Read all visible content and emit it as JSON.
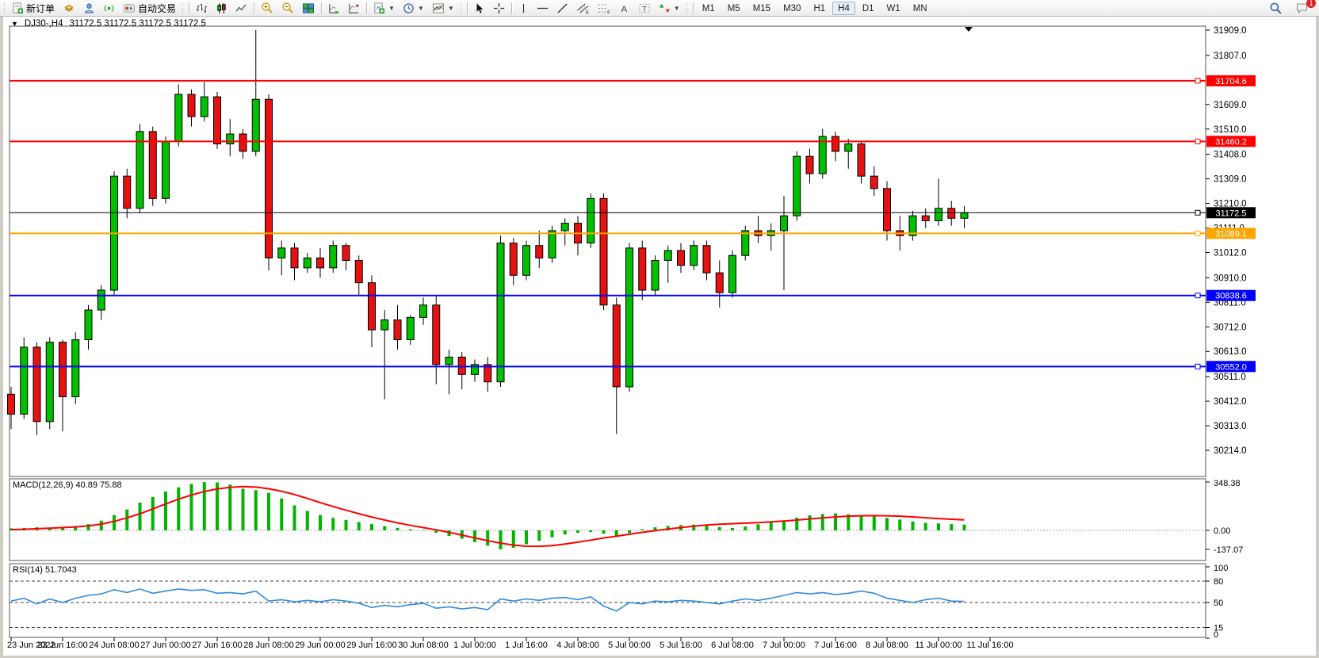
{
  "toolbar": {
    "new_order_label": "新订单",
    "autotrade_label": "自动交易",
    "timeframes": [
      "M1",
      "M5",
      "M15",
      "M30",
      "H1",
      "H4",
      "D1",
      "W1",
      "MN"
    ],
    "active_timeframe": "H4",
    "chat_badge": "1"
  },
  "chart_title": {
    "symbol": "DJ30-,H4",
    "ohlc": "31172.5 31172.5 31172.5 31172.5"
  },
  "macd_panel": {
    "label": "MACD(12,26,9)",
    "values": "40.89 75.88"
  },
  "rsi_panel": {
    "label": "RSI(14)",
    "value": "51.7043"
  },
  "chart_data": {
    "type": "candlestick",
    "symbol": "DJ30-,H4",
    "colors": {
      "up": "#00c000",
      "down": "#e51212",
      "wick": "#000000",
      "macd_hist": "#00b400",
      "macd_signal": "#ff0000",
      "rsi_line": "#2f8be0"
    },
    "y_axis": {
      "ticks": [
        31909.0,
        31807.0,
        31609.0,
        31510.0,
        31408.0,
        31309.0,
        31210.0,
        31111.0,
        31012.0,
        30910.0,
        30811.0,
        30712.0,
        30613.0,
        30511.0,
        30412.0,
        30313.0,
        30214.0
      ],
      "range_top": 31925,
      "range_bottom": 30108
    },
    "x_axis": {
      "labels": [
        "23 Jun 2022",
        "23 Jun 16:00",
        "24 Jun 08:00",
        "27 Jun 00:00",
        "27 Jun 16:00",
        "28 Jun 08:00",
        "29 Jun 00:00",
        "29 Jun 16:00",
        "30 Jun 08:00",
        "1 Jul 00:00",
        "1 Jul 16:00",
        "4 Jul 08:00",
        "5 Jul 00:00",
        "5 Jul 16:00",
        "6 Jul 08:00",
        "7 Jul 00:00",
        "7 Jul 16:00",
        "8 Jul 08:00",
        "11 Jul 00:00",
        "11 Jul 16:00"
      ],
      "bars_per_label": 4
    },
    "levels": [
      {
        "value": 31704.6,
        "label": "31704.6",
        "color": "#ff0000",
        "width": 2
      },
      {
        "value": 31460.2,
        "label": "31460.2",
        "color": "#ff0000",
        "width": 2
      },
      {
        "value": 31172.5,
        "label": "31172.5",
        "color": "#000000",
        "width": 1
      },
      {
        "value": 31089.1,
        "label": "31089.1",
        "color": "#ffa500",
        "width": 2
      },
      {
        "value": 30838.6,
        "label": "30838.6",
        "color": "#0000ff",
        "width": 2
      },
      {
        "value": 30552.0,
        "label": "30552.0",
        "color": "#0000ff",
        "width": 2
      }
    ],
    "candles": [
      [
        30440,
        30470,
        30300,
        30360
      ],
      [
        30360,
        30670,
        30340,
        30630
      ],
      [
        30630,
        30650,
        30275,
        30330
      ],
      [
        30330,
        30670,
        30300,
        30650
      ],
      [
        30650,
        30660,
        30290,
        30430
      ],
      [
        30430,
        30690,
        30400,
        30660
      ],
      [
        30660,
        30800,
        30620,
        30780
      ],
      [
        30780,
        30880,
        30740,
        30860
      ],
      [
        30860,
        31340,
        30840,
        31320
      ],
      [
        31320,
        31350,
        31150,
        31190
      ],
      [
        31190,
        31530,
        31170,
        31500
      ],
      [
        31500,
        31520,
        31200,
        31230
      ],
      [
        31230,
        31480,
        31210,
        31460
      ],
      [
        31460,
        31690,
        31440,
        31650
      ],
      [
        31650,
        31670,
        31520,
        31560
      ],
      [
        31560,
        31700,
        31540,
        31640
      ],
      [
        31640,
        31660,
        31430,
        31450
      ],
      [
        31450,
        31550,
        31400,
        31490
      ],
      [
        31490,
        31510,
        31390,
        31420
      ],
      [
        31420,
        31909,
        31400,
        31630
      ],
      [
        31630,
        31650,
        30940,
        30990
      ],
      [
        30990,
        31060,
        30920,
        31030
      ],
      [
        31030,
        31050,
        30900,
        30950
      ],
      [
        30950,
        31010,
        30930,
        30990
      ],
      [
        30990,
        31030,
        30910,
        30950
      ],
      [
        30950,
        31060,
        30930,
        31040
      ],
      [
        31040,
        31050,
        30940,
        30980
      ],
      [
        30980,
        31000,
        30840,
        30890
      ],
      [
        30890,
        30920,
        30630,
        30700
      ],
      [
        30700,
        30780,
        30420,
        30740
      ],
      [
        30740,
        30800,
        30620,
        30660
      ],
      [
        30660,
        30760,
        30640,
        30750
      ],
      [
        30750,
        30830,
        30720,
        30800
      ],
      [
        30800,
        30840,
        30480,
        30560
      ],
      [
        30560,
        30620,
        30440,
        30590
      ],
      [
        30590,
        30610,
        30460,
        30520
      ],
      [
        30520,
        30580,
        30490,
        30560
      ],
      [
        30560,
        30590,
        30450,
        30490
      ],
      [
        30490,
        31080,
        30470,
        31050
      ],
      [
        31050,
        31070,
        30880,
        30920
      ],
      [
        30920,
        31060,
        30900,
        31040
      ],
      [
        31040,
        31100,
        30950,
        30990
      ],
      [
        30990,
        31120,
        30970,
        31100
      ],
      [
        31100,
        31150,
        31040,
        31130
      ],
      [
        31130,
        31160,
        31000,
        31050
      ],
      [
        31050,
        31250,
        31030,
        31230
      ],
      [
        31230,
        31250,
        30780,
        30800
      ],
      [
        30800,
        30830,
        30280,
        30470
      ],
      [
        30470,
        31050,
        30450,
        31030
      ],
      [
        31030,
        31060,
        30820,
        30860
      ],
      [
        30860,
        31000,
        30840,
        30980
      ],
      [
        30980,
        31040,
        30890,
        31020
      ],
      [
        31020,
        31050,
        30930,
        30960
      ],
      [
        30960,
        31060,
        30940,
        31040
      ],
      [
        31040,
        31060,
        30900,
        30930
      ],
      [
        30930,
        30980,
        30790,
        30850
      ],
      [
        30850,
        31020,
        30830,
        31000
      ],
      [
        31000,
        31120,
        30980,
        31100
      ],
      [
        31100,
        31160,
        31050,
        31080
      ],
      [
        31080,
        31130,
        31020,
        31100
      ],
      [
        31100,
        31240,
        30860,
        31160
      ],
      [
        31160,
        31420,
        31140,
        31400
      ],
      [
        31400,
        31430,
        31290,
        31330
      ],
      [
        31330,
        31510,
        31310,
        31480
      ],
      [
        31480,
        31500,
        31380,
        31420
      ],
      [
        31420,
        31470,
        31350,
        31450
      ],
      [
        31450,
        31460,
        31290,
        31320
      ],
      [
        31320,
        31360,
        31240,
        31270
      ],
      [
        31270,
        31300,
        31060,
        31100
      ],
      [
        31100,
        31160,
        31020,
        31080
      ],
      [
        31080,
        31180,
        31060,
        31160
      ],
      [
        31160,
        31190,
        31110,
        31140
      ],
      [
        31140,
        31310,
        31120,
        31190
      ],
      [
        31190,
        31220,
        31120,
        31150
      ],
      [
        31150,
        31200,
        31110,
        31172.5
      ]
    ],
    "macd": {
      "scale": [
        {
          "label": "348.38",
          "value": 348.38
        },
        {
          "label": "0.00",
          "value": 0
        },
        {
          "label": "-137.07",
          "value": -137.07
        }
      ],
      "histogram": [
        15,
        18,
        22,
        20,
        25,
        30,
        45,
        70,
        110,
        150,
        200,
        240,
        280,
        310,
        335,
        348,
        345,
        330,
        300,
        290,
        270,
        230,
        180,
        140,
        110,
        90,
        75,
        60,
        45,
        30,
        18,
        8,
        -2,
        -18,
        -40,
        -60,
        -85,
        -110,
        -137,
        -125,
        -100,
        -75,
        -50,
        -30,
        -18,
        -12,
        -25,
        -48,
        -20,
        8,
        22,
        32,
        38,
        42,
        34,
        24,
        18,
        28,
        44,
        58,
        72,
        92,
        108,
        118,
        122,
        116,
        108,
        100,
        90,
        78,
        64,
        54,
        50,
        45,
        41
      ],
      "signal": [
        5,
        8,
        12,
        16,
        20,
        25,
        32,
        45,
        65,
        90,
        120,
        155,
        190,
        225,
        255,
        280,
        298,
        310,
        315,
        312,
        300,
        282,
        258,
        230,
        200,
        172,
        145,
        120,
        96,
        74,
        54,
        36,
        20,
        4,
        -14,
        -34,
        -54,
        -74,
        -92,
        -106,
        -114,
        -115,
        -110,
        -99,
        -85,
        -70,
        -55,
        -42,
        -28,
        -14,
        -2,
        10,
        20,
        30,
        38,
        44,
        48,
        52,
        56,
        61,
        67,
        74,
        82,
        90,
        97,
        102,
        105,
        106,
        105,
        102,
        97,
        91,
        85,
        80,
        76
      ]
    },
    "rsi": {
      "scale": [
        {
          "label": "100",
          "value": 100
        },
        {
          "label": "80",
          "value": 80,
          "dashed": true
        },
        {
          "label": "50",
          "value": 50,
          "dashed": true
        },
        {
          "label": "15",
          "value": 15,
          "dashed": true
        },
        {
          "label": "0",
          "value": 0
        }
      ],
      "values": [
        52,
        56,
        48,
        55,
        50,
        56,
        60,
        62,
        68,
        64,
        69,
        63,
        66,
        69,
        67,
        68,
        63,
        64,
        62,
        66,
        52,
        54,
        51,
        53,
        51,
        54,
        52,
        49,
        43,
        46,
        44,
        47,
        49,
        42,
        44,
        41,
        43,
        40,
        55,
        52,
        55,
        53,
        56,
        57,
        54,
        58,
        45,
        38,
        50,
        48,
        52,
        51,
        53,
        52,
        50,
        48,
        52,
        55,
        53,
        56,
        60,
        64,
        62,
        64,
        61,
        63,
        66,
        63,
        56,
        53,
        50,
        54,
        56,
        52,
        51.7
      ]
    }
  }
}
